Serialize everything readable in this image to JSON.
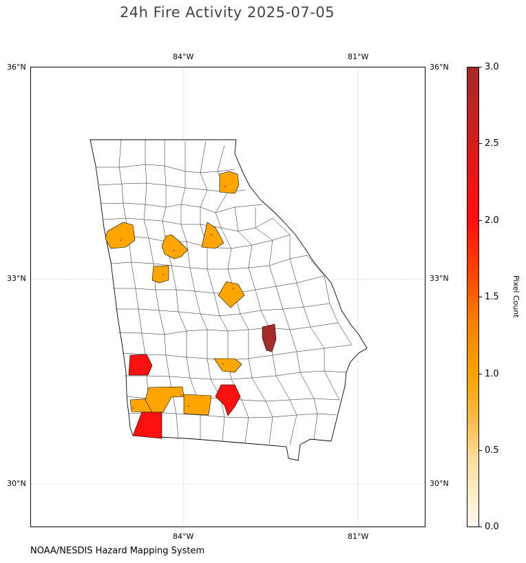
{
  "title": "24h Fire Activity 2025-07-05",
  "credit": "NOAA/NESDIS Hazard Mapping System",
  "axes": {
    "lon_labels": [
      "84°W",
      "81°W"
    ],
    "lat_labels": [
      "36°N",
      "33°N",
      "30°N"
    ]
  },
  "colorbar": {
    "label": "Pixel Count",
    "ticks": [
      "3.0",
      "2.5",
      "2.0",
      "1.5",
      "1.0",
      "0.5",
      "0.0"
    ],
    "colors": {
      "one": "#ffa500",
      "two": "#ff1010",
      "three": "#a52a2a"
    }
  },
  "map": {
    "region": "Georgia counties",
    "highlighted_counties": [
      {
        "pixel_count": 1
      },
      {
        "pixel_count": 1
      },
      {
        "pixel_count": 1
      },
      {
        "pixel_count": 1
      },
      {
        "pixel_count": 1
      },
      {
        "pixel_count": 1
      },
      {
        "pixel_count": 1
      },
      {
        "pixel_count": 1
      },
      {
        "pixel_count": 1
      },
      {
        "pixel_count": 1
      },
      {
        "pixel_count": 2
      },
      {
        "pixel_count": 2
      },
      {
        "pixel_count": 2
      },
      {
        "pixel_count": 3
      }
    ]
  }
}
